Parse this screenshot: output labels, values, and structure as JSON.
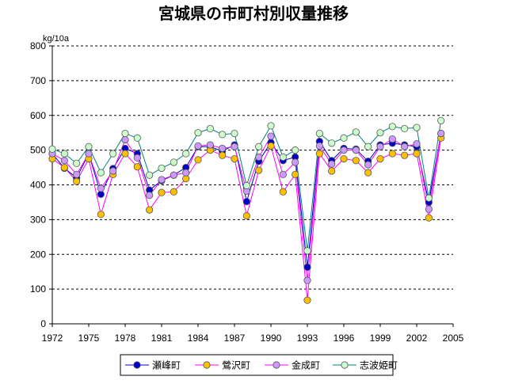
{
  "chart_data": {
    "type": "line",
    "title": "宮城県の市町村別収量推移",
    "ylabel": "kg/10a",
    "xlabel": "",
    "xlim": [
      1972,
      2005
    ],
    "ylim": [
      0,
      800
    ],
    "x_ticks": [
      1972,
      1975,
      1978,
      1981,
      1984,
      1987,
      1990,
      1993,
      1996,
      1999,
      2002,
      2005
    ],
    "x_tick_labels": [
      "1972",
      "1975",
      "1978",
      "1981",
      "1984",
      "1987",
      "1990",
      "1993",
      "1996",
      "1999",
      "2002",
      "2005"
    ],
    "y_ticks": [
      0,
      100,
      200,
      300,
      400,
      500,
      600,
      700,
      800
    ],
    "y_tick_labels": [
      "0",
      "100",
      "200",
      "300",
      "400",
      "500",
      "600",
      "700",
      "800"
    ],
    "grid": "horizontal dashed",
    "legend_position": "bottom",
    "x": [
      1972,
      1973,
      1974,
      1975,
      1976,
      1977,
      1978,
      1979,
      1980,
      1981,
      1982,
      1983,
      1984,
      1985,
      1986,
      1987,
      1988,
      1989,
      1990,
      1991,
      1992,
      1993,
      1994,
      1995,
      1996,
      1997,
      1998,
      1999,
      2000,
      2001,
      2002,
      2003,
      2004
    ],
    "series": [
      {
        "name": "瀬峰町",
        "color": "#0000cc",
        "line_color": "#0000cc",
        "values": [
          490,
          448,
          420,
          490,
          373,
          447,
          505,
          490,
          385,
          412,
          428,
          450,
          510,
          510,
          497,
          515,
          352,
          468,
          522,
          470,
          480,
          163,
          525,
          470,
          505,
          503,
          468,
          515,
          520,
          515,
          510,
          350,
          548
        ]
      },
      {
        "name": "鶯沢町",
        "color": "#ffc000",
        "line_color": "#ff00ff",
        "values": [
          475,
          450,
          410,
          475,
          315,
          430,
          490,
          452,
          328,
          378,
          380,
          418,
          472,
          500,
          485,
          475,
          311,
          442,
          512,
          380,
          430,
          68,
          490,
          440,
          475,
          470,
          435,
          475,
          490,
          485,
          490,
          305,
          535
        ]
      },
      {
        "name": "金成町",
        "color": "#cc99ff",
        "line_color": "#ff00ff",
        "values": [
          490,
          470,
          430,
          490,
          390,
          440,
          530,
          478,
          370,
          415,
          428,
          435,
          512,
          515,
          505,
          510,
          382,
          480,
          540,
          430,
          465,
          125,
          512,
          460,
          500,
          500,
          458,
          510,
          532,
          510,
          518,
          330,
          548
        ]
      },
      {
        "name": "志波姫町",
        "color": "#ccffcc",
        "line_color": "#008080",
        "values": [
          503,
          490,
          462,
          510,
          435,
          490,
          548,
          535,
          428,
          448,
          465,
          490,
          550,
          562,
          545,
          548,
          398,
          510,
          570,
          480,
          500,
          210,
          548,
          520,
          535,
          552,
          510,
          550,
          568,
          562,
          565,
          362,
          585
        ]
      }
    ]
  }
}
